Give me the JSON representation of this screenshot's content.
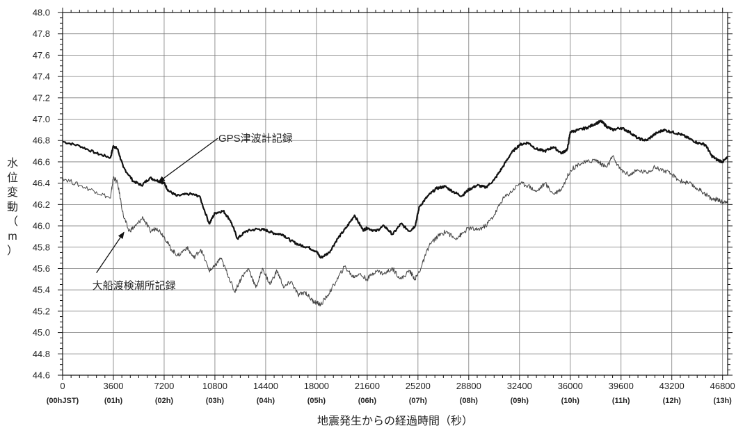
{
  "chart_data": {
    "type": "line",
    "xlabel": "地震発生からの経過時間（秒）",
    "ylabel": "水位変動（m）",
    "ylim": [
      44.6,
      48.0
    ],
    "xlim": [
      0,
      47160
    ],
    "grid": true,
    "y_ticks": [
      "48.0",
      "47.8",
      "47.6",
      "47.4",
      "47.2",
      "47.0",
      "46.8",
      "46.6",
      "46.4",
      "46.2",
      "46.0",
      "45.8",
      "45.6",
      "45.4",
      "45.2",
      "45.0",
      "44.8",
      "44.6"
    ],
    "x_ticks": [
      "0",
      "3600",
      "7200",
      "10800",
      "14400",
      "18000",
      "21600",
      "25200",
      "28800",
      "32400",
      "36000",
      "39600",
      "43200",
      "46800"
    ],
    "x_ticks_hours": [
      "(00hJST)",
      "(01h)",
      "(02h)",
      "(03h)",
      "(04h)",
      "(05h)",
      "(06h)",
      "(07h)",
      "(08h)",
      "(09h)",
      "(10h)",
      "(11h)",
      "(12h)",
      "(13h)"
    ],
    "annotations": [
      {
        "text": "GPS津波計記録",
        "series": "GPS津波計記録"
      },
      {
        "text": "大船渡検潮所記録",
        "series": "大船渡検潮所記録"
      }
    ],
    "series": [
      {
        "name": "GPS津波計記録",
        "color": "#111111",
        "x": [
          0,
          1200,
          2400,
          3400,
          3600,
          3900,
          4300,
          5000,
          5600,
          6200,
          6800,
          7200,
          7500,
          8100,
          9000,
          9700,
          10400,
          10800,
          11400,
          11900,
          12400,
          13000,
          13800,
          14400,
          15000,
          15600,
          16200,
          16800,
          17400,
          18000,
          18300,
          18900,
          19500,
          20100,
          20700,
          21300,
          21600,
          22200,
          22800,
          23400,
          24000,
          24600,
          25000,
          25300,
          25900,
          26500,
          27100,
          27700,
          28300,
          28800,
          29400,
          30000,
          30600,
          31200,
          31800,
          32400,
          33000,
          33600,
          34200,
          34800,
          35400,
          35800,
          36000,
          36600,
          37200,
          37800,
          38200,
          38600,
          39000,
          39600,
          40200,
          40800,
          41400,
          42000,
          42600,
          43200,
          43800,
          44400,
          45000,
          45600,
          46000,
          46400,
          46800,
          47160
        ],
        "y": [
          46.79,
          46.75,
          46.68,
          46.64,
          46.75,
          46.72,
          46.55,
          46.42,
          46.38,
          46.45,
          46.42,
          46.4,
          46.33,
          46.28,
          46.3,
          46.28,
          46.02,
          46.12,
          46.14,
          46.05,
          45.88,
          45.95,
          45.97,
          45.96,
          45.93,
          45.92,
          45.86,
          45.82,
          45.8,
          45.76,
          45.7,
          45.75,
          45.88,
          45.98,
          46.1,
          45.96,
          45.98,
          45.95,
          46.0,
          45.92,
          46.02,
          45.95,
          46.0,
          46.18,
          46.28,
          46.35,
          46.37,
          46.32,
          46.28,
          46.34,
          46.38,
          46.36,
          46.43,
          46.55,
          46.68,
          46.76,
          46.78,
          46.72,
          46.7,
          46.74,
          46.68,
          46.72,
          46.88,
          46.9,
          46.92,
          46.96,
          46.98,
          46.93,
          46.9,
          46.92,
          46.88,
          46.82,
          46.8,
          46.86,
          46.9,
          46.88,
          46.86,
          46.82,
          46.78,
          46.76,
          46.66,
          46.62,
          46.6,
          46.64
        ]
      },
      {
        "name": "大船渡検潮所記録",
        "color": "#444444",
        "x": [
          0,
          1200,
          2400,
          3400,
          3600,
          3900,
          4300,
          4700,
          5200,
          5700,
          6200,
          6700,
          7200,
          7700,
          8200,
          8800,
          9300,
          9800,
          10400,
          10800,
          11200,
          11700,
          12200,
          12700,
          13200,
          13700,
          14200,
          14700,
          15200,
          15700,
          16200,
          16700,
          17200,
          17700,
          18000,
          18300,
          18800,
          19400,
          20000,
          20600,
          21000,
          21600,
          22200,
          22800,
          23400,
          24000,
          24600,
          25000,
          25400,
          26000,
          26600,
          27200,
          27800,
          28300,
          28800,
          29400,
          30000,
          30600,
          31200,
          31800,
          32400,
          33000,
          33600,
          34200,
          34800,
          35400,
          36000,
          36600,
          37200,
          37800,
          38200,
          38600,
          39000,
          39600,
          40200,
          40800,
          41400,
          42000,
          42600,
          43200,
          43800,
          44400,
          45000,
          45600,
          46000,
          46400,
          46800,
          47160
        ],
        "y": [
          46.45,
          46.38,
          46.32,
          46.26,
          46.46,
          46.4,
          46.1,
          45.95,
          46.0,
          46.08,
          45.95,
          45.98,
          45.9,
          45.78,
          45.72,
          45.8,
          45.7,
          45.78,
          45.58,
          45.62,
          45.7,
          45.55,
          45.38,
          45.52,
          45.6,
          45.42,
          45.6,
          45.45,
          45.58,
          45.42,
          45.48,
          45.35,
          45.38,
          45.3,
          45.28,
          45.26,
          45.35,
          45.48,
          45.62,
          45.52,
          45.55,
          45.5,
          45.58,
          45.55,
          45.6,
          45.5,
          45.58,
          45.5,
          45.6,
          45.82,
          45.9,
          45.95,
          45.88,
          45.92,
          45.98,
          45.96,
          46.0,
          46.1,
          46.25,
          46.32,
          46.4,
          46.38,
          46.32,
          46.4,
          46.3,
          46.35,
          46.52,
          46.58,
          46.6,
          46.62,
          46.58,
          46.55,
          46.65,
          46.52,
          46.48,
          46.52,
          46.5,
          46.55,
          46.52,
          46.48,
          46.42,
          46.4,
          46.35,
          46.3,
          46.25,
          46.25,
          46.22,
          46.24
        ]
      }
    ]
  }
}
